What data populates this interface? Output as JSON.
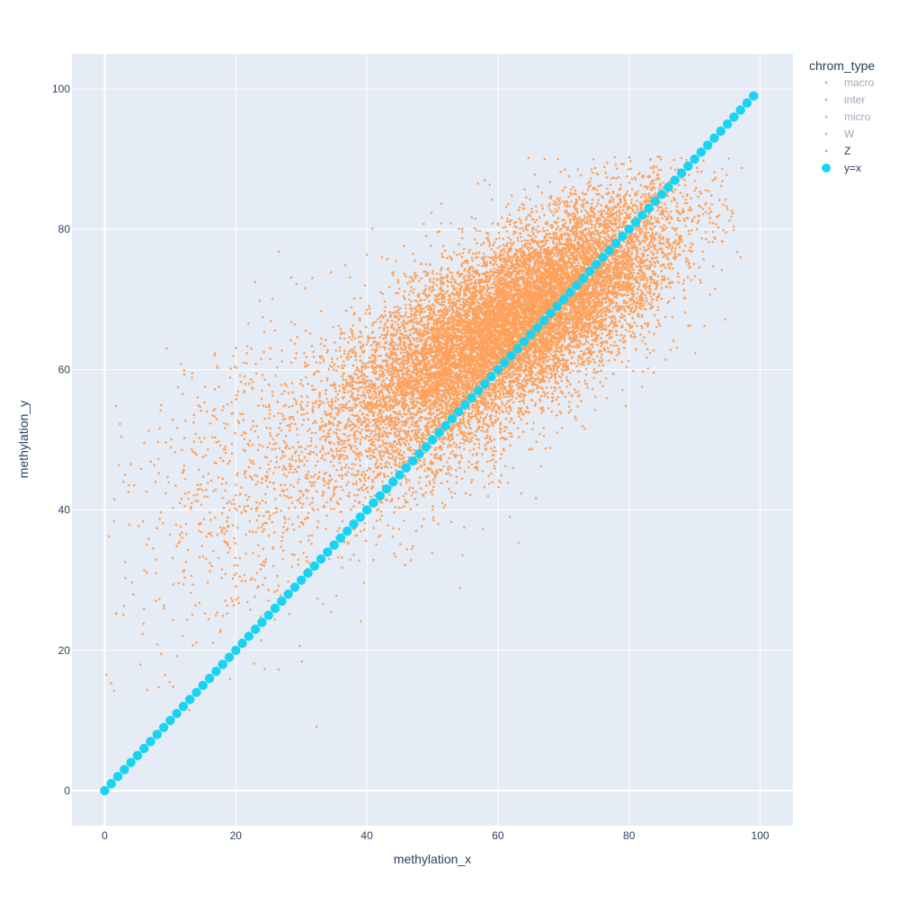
{
  "chart_data": {
    "type": "scatter",
    "xlabel": "methylation_x",
    "ylabel": "methylation_y",
    "xlim": [
      -5,
      105
    ],
    "ylim": [
      -5,
      105
    ],
    "x_ticks": [
      0,
      20,
      40,
      60,
      80,
      100
    ],
    "y_ticks": [
      0,
      20,
      40,
      60,
      80,
      100
    ],
    "x_tick_labels": [
      "0",
      "20",
      "40",
      "60",
      "80",
      "100"
    ],
    "y_tick_labels": [
      "0",
      "20",
      "40",
      "60",
      "80",
      "100"
    ],
    "grid": true,
    "plot_background": "#e5ecf6",
    "legend": {
      "title": "chrom_type",
      "placement": "top-right",
      "entries": [
        {
          "name": "macro",
          "color": "#636efa",
          "visible": false
        },
        {
          "name": "inter",
          "color": "#ef553b",
          "visible": false
        },
        {
          "name": "micro",
          "color": "#00cc96",
          "visible": false
        },
        {
          "name": "W",
          "color": "#ab63fa",
          "visible": false
        },
        {
          "name": "Z",
          "color": "#ffa15a",
          "visible": true
        },
        {
          "name": "y=x",
          "color": "#19d3f3",
          "visible": true
        }
      ]
    },
    "series": [
      {
        "name": "Z",
        "color": "#ffa15a",
        "marker_size": 3,
        "description_points": "approximately 15000 points; dense cloud centered near (62, 67), spreading from x≈0 to x≈98 and y≈9 to y≈90",
        "clusters": [
          {
            "center": [
              63,
              67
            ],
            "spread": [
              10,
              7
            ],
            "corr": 0.6,
            "weight": 0.55
          },
          {
            "center": [
              50,
              58
            ],
            "spread": [
              10,
              9
            ],
            "corr": 0.5,
            "weight": 0.25
          },
          {
            "center": [
              75,
              75
            ],
            "spread": [
              8,
              7
            ],
            "corr": 0.5,
            "weight": 0.15
          },
          {
            "center": [
              22,
              44
            ],
            "spread": [
              10,
              12
            ],
            "corr": 0.4,
            "weight": 0.05
          }
        ],
        "count": 15000
      },
      {
        "name": "y=x",
        "color": "#19d3f3",
        "marker_size": 12,
        "x_range": [
          0,
          99
        ],
        "step": 1,
        "formula": "y=x"
      }
    ]
  }
}
